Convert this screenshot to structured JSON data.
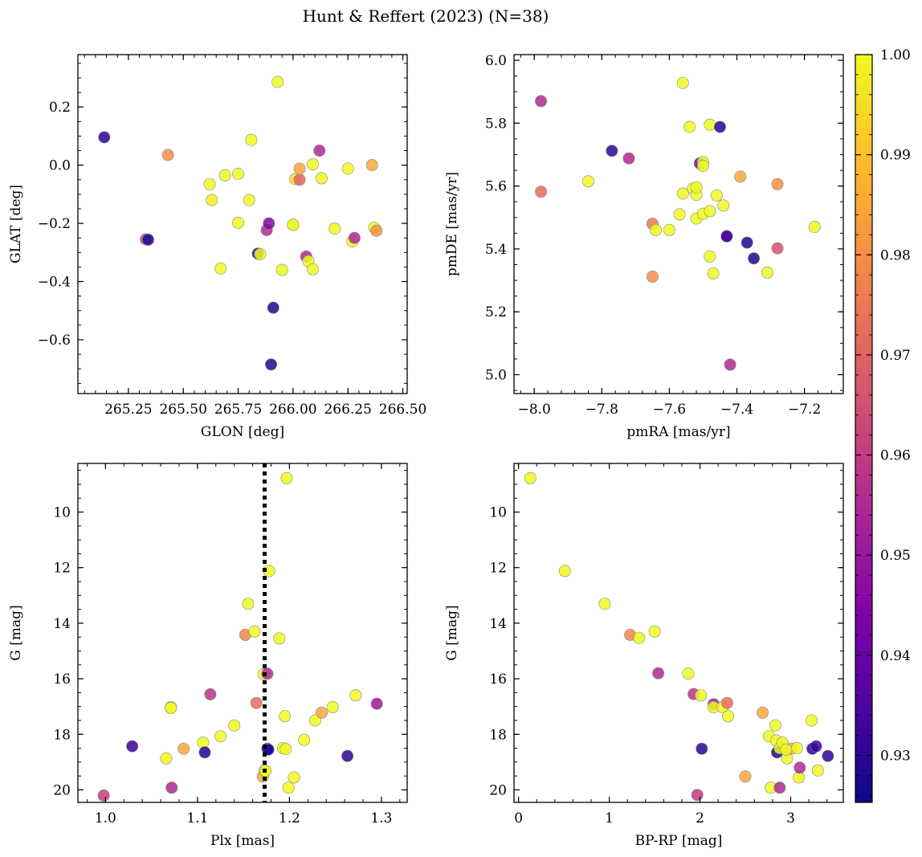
{
  "figure": {
    "title": "Hunt & Reffert (2023) (N=38)"
  },
  "colorbar": {
    "vmin": 0.9253,
    "vmax": 1.0,
    "colormap": "plasma",
    "ticks": [
      0.93,
      0.94,
      0.95,
      0.96,
      0.97,
      0.98,
      0.99,
      1.0
    ],
    "tick_labels": [
      "0.93",
      "0.94",
      "0.95",
      "0.96",
      "0.97",
      "0.98",
      "0.99",
      "1.00"
    ]
  },
  "chart_data": [
    {
      "id": "glon-glat",
      "type": "scatter",
      "xlabel": "GLON [deg]",
      "ylabel": "GLAT [deg]",
      "xlim": [
        265.02,
        266.52
      ],
      "ylim": [
        -0.785,
        0.38
      ],
      "yinvert": false,
      "xticks": [
        265.25,
        265.5,
        265.75,
        266.0,
        266.25,
        266.5
      ],
      "xtick_labels": [
        "265.25",
        "265.50",
        "265.75",
        "266.00",
        "266.25",
        "266.50"
      ],
      "yticks": [
        0.2,
        0.0,
        -0.2,
        -0.4,
        -0.6
      ],
      "ytick_labels": [
        "0.2",
        "0.0",
        "−0.2",
        "−0.4",
        "−0.6"
      ],
      "points": [
        {
          "x": 265.14,
          "y": 0.096,
          "c": 0.93
        },
        {
          "x": 265.43,
          "y": 0.035,
          "c": 0.98
        },
        {
          "x": 265.33,
          "y": -0.255,
          "c": 0.96
        },
        {
          "x": 265.34,
          "y": -0.256,
          "c": 0.928
        },
        {
          "x": 265.62,
          "y": -0.065,
          "c": 1.0
        },
        {
          "x": 265.63,
          "y": -0.12,
          "c": 0.998
        },
        {
          "x": 265.67,
          "y": -0.355,
          "c": 1.0
        },
        {
          "x": 265.69,
          "y": -0.035,
          "c": 1.0
        },
        {
          "x": 265.75,
          "y": -0.03,
          "c": 1.0
        },
        {
          "x": 265.75,
          "y": -0.198,
          "c": 1.0
        },
        {
          "x": 265.8,
          "y": -0.12,
          "c": 1.0
        },
        {
          "x": 265.81,
          "y": 0.087,
          "c": 1.0
        },
        {
          "x": 265.84,
          "y": -0.304,
          "c": 0.928
        },
        {
          "x": 265.85,
          "y": -0.306,
          "c": 1.0
        },
        {
          "x": 265.88,
          "y": -0.223,
          "c": 0.955
        },
        {
          "x": 265.89,
          "y": -0.2,
          "c": 0.945
        },
        {
          "x": 265.9,
          "y": -0.685,
          "c": 0.928
        },
        {
          "x": 265.91,
          "y": -0.49,
          "c": 0.928
        },
        {
          "x": 265.93,
          "y": 0.286,
          "c": 1.0
        },
        {
          "x": 265.95,
          "y": -0.36,
          "c": 1.0
        },
        {
          "x": 266.0,
          "y": -0.205,
          "c": 1.0
        },
        {
          "x": 266.01,
          "y": -0.048,
          "c": 0.995
        },
        {
          "x": 266.03,
          "y": -0.05,
          "c": 0.97
        },
        {
          "x": 266.03,
          "y": -0.012,
          "c": 0.985
        },
        {
          "x": 266.06,
          "y": -0.314,
          "c": 0.955
        },
        {
          "x": 266.07,
          "y": -0.33,
          "c": 1.0
        },
        {
          "x": 266.09,
          "y": 0.003,
          "c": 1.0
        },
        {
          "x": 266.09,
          "y": -0.358,
          "c": 1.0
        },
        {
          "x": 266.12,
          "y": 0.05,
          "c": 0.955
        },
        {
          "x": 266.13,
          "y": -0.045,
          "c": 1.0
        },
        {
          "x": 266.19,
          "y": -0.218,
          "c": 1.0
        },
        {
          "x": 266.25,
          "y": -0.012,
          "c": 1.0
        },
        {
          "x": 266.27,
          "y": -0.262,
          "c": 1.0
        },
        {
          "x": 266.28,
          "y": -0.25,
          "c": 0.955
        },
        {
          "x": 266.36,
          "y": 0.0,
          "c": 0.985
        },
        {
          "x": 266.37,
          "y": -0.215,
          "c": 1.0
        },
        {
          "x": 266.38,
          "y": -0.225,
          "c": 0.98
        },
        {
          "x": 266.0,
          "y": -0.205,
          "c": 1.0
        }
      ]
    },
    {
      "id": "pmra-pmde",
      "type": "scatter",
      "xlabel": "pmRA [mas/yr]",
      "ylabel": "pmDE [mas/yr]",
      "xlim": [
        -8.06,
        -7.085
      ],
      "ylim": [
        4.94,
        6.018
      ],
      "yinvert": false,
      "xticks": [
        -8.0,
        -7.8,
        -7.6,
        -7.4,
        -7.2
      ],
      "xtick_labels": [
        "−8.0",
        "−7.8",
        "−7.6",
        "−7.4",
        "−7.2"
      ],
      "yticks": [
        5.0,
        5.2,
        5.4,
        5.6,
        5.8,
        6.0
      ],
      "ytick_labels": [
        "5.0",
        "5.2",
        "5.4",
        "5.6",
        "5.8",
        "6.0"
      ],
      "points": [
        {
          "x": -7.98,
          "y": 5.87,
          "c": 0.955
        },
        {
          "x": -7.98,
          "y": 5.582,
          "c": 0.972
        },
        {
          "x": -7.84,
          "y": 5.615,
          "c": 1.0
        },
        {
          "x": -7.77,
          "y": 5.712,
          "c": 0.93
        },
        {
          "x": -7.72,
          "y": 5.688,
          "c": 0.955
        },
        {
          "x": -7.65,
          "y": 5.48,
          "c": 0.975
        },
        {
          "x": -7.65,
          "y": 5.312,
          "c": 0.98
        },
        {
          "x": -7.64,
          "y": 5.46,
          "c": 1.0
        },
        {
          "x": -7.6,
          "y": 5.46,
          "c": 1.0
        },
        {
          "x": -7.57,
          "y": 5.51,
          "c": 1.0
        },
        {
          "x": -7.56,
          "y": 5.928,
          "c": 1.0
        },
        {
          "x": -7.56,
          "y": 5.576,
          "c": 1.0
        },
        {
          "x": -7.54,
          "y": 5.788,
          "c": 1.0
        },
        {
          "x": -7.53,
          "y": 5.592,
          "c": 1.0
        },
        {
          "x": -7.52,
          "y": 5.572,
          "c": 1.0
        },
        {
          "x": -7.52,
          "y": 5.596,
          "c": 1.0
        },
        {
          "x": -7.52,
          "y": 5.497,
          "c": 1.0
        },
        {
          "x": -7.51,
          "y": 5.672,
          "c": 0.945
        },
        {
          "x": -7.5,
          "y": 5.676,
          "c": 1.0
        },
        {
          "x": -7.5,
          "y": 5.664,
          "c": 1.0
        },
        {
          "x": -7.5,
          "y": 5.512,
          "c": 1.0
        },
        {
          "x": -7.48,
          "y": 5.795,
          "c": 1.0
        },
        {
          "x": -7.48,
          "y": 5.52,
          "c": 1.0
        },
        {
          "x": -7.48,
          "y": 5.376,
          "c": 1.0
        },
        {
          "x": -7.47,
          "y": 5.322,
          "c": 1.0
        },
        {
          "x": -7.46,
          "y": 5.57,
          "c": 1.0
        },
        {
          "x": -7.45,
          "y": 5.788,
          "c": 0.928
        },
        {
          "x": -7.44,
          "y": 5.538,
          "c": 1.0
        },
        {
          "x": -7.43,
          "y": 5.441,
          "c": 0.935
        },
        {
          "x": -7.43,
          "y": 5.44,
          "c": 0.935
        },
        {
          "x": -7.42,
          "y": 5.032,
          "c": 0.955
        },
        {
          "x": -7.39,
          "y": 5.63,
          "c": 0.985
        },
        {
          "x": -7.37,
          "y": 5.42,
          "c": 0.928
        },
        {
          "x": -7.35,
          "y": 5.37,
          "c": 0.928
        },
        {
          "x": -7.31,
          "y": 5.325,
          "c": 1.0
        },
        {
          "x": -7.28,
          "y": 5.606,
          "c": 0.98
        },
        {
          "x": -7.28,
          "y": 5.402,
          "c": 0.965
        },
        {
          "x": -7.17,
          "y": 5.47,
          "c": 1.0
        }
      ]
    },
    {
      "id": "plx-g",
      "type": "scatter",
      "xlabel": "Plx [mas]",
      "ylabel": "G [mag]",
      "xlim": [
        0.97,
        1.328
      ],
      "ylim": [
        8.25,
        20.45
      ],
      "yinvert": true,
      "vline": 1.173,
      "xticks": [
        1.0,
        1.1,
        1.2,
        1.3
      ],
      "xtick_labels": [
        "1.0",
        "1.1",
        "1.2",
        "1.3"
      ],
      "yticks": [
        10,
        12,
        14,
        16,
        18,
        20
      ],
      "ytick_labels": [
        "10",
        "12",
        "14",
        "16",
        "18",
        "20"
      ],
      "points": [
        {
          "x": 0.998,
          "y": 20.2,
          "c": 0.96
        },
        {
          "x": 1.029,
          "y": 18.43,
          "c": 0.932
        },
        {
          "x": 1.066,
          "y": 18.87,
          "c": 1.0
        },
        {
          "x": 1.071,
          "y": 17.02,
          "c": 1.0
        },
        {
          "x": 1.071,
          "y": 17.05,
          "c": 1.0
        },
        {
          "x": 1.072,
          "y": 19.92,
          "c": 0.955
        },
        {
          "x": 1.085,
          "y": 18.52,
          "c": 0.985
        },
        {
          "x": 1.106,
          "y": 18.3,
          "c": 1.0
        },
        {
          "x": 1.108,
          "y": 18.65,
          "c": 0.928
        },
        {
          "x": 1.114,
          "y": 16.56,
          "c": 0.958
        },
        {
          "x": 1.125,
          "y": 18.07,
          "c": 1.0
        },
        {
          "x": 1.14,
          "y": 17.68,
          "c": 1.0
        },
        {
          "x": 1.152,
          "y": 14.42,
          "c": 0.978
        },
        {
          "x": 1.155,
          "y": 13.3,
          "c": 1.0
        },
        {
          "x": 1.162,
          "y": 14.3,
          "c": 1.0
        },
        {
          "x": 1.164,
          "y": 16.87,
          "c": 0.972
        },
        {
          "x": 1.171,
          "y": 19.52,
          "c": 0.985
        },
        {
          "x": 1.172,
          "y": 15.83,
          "c": 1.0
        },
        {
          "x": 1.173,
          "y": 19.3,
          "c": 1.0
        },
        {
          "x": 1.176,
          "y": 15.82,
          "c": 0.955
        },
        {
          "x": 1.176,
          "y": 18.52,
          "c": 0.928
        },
        {
          "x": 1.177,
          "y": 18.55,
          "c": 0.928
        },
        {
          "x": 1.178,
          "y": 12.12,
          "c": 1.0
        },
        {
          "x": 1.189,
          "y": 14.55,
          "c": 1.0
        },
        {
          "x": 1.193,
          "y": 18.5,
          "c": 1.0
        },
        {
          "x": 1.195,
          "y": 17.35,
          "c": 1.0
        },
        {
          "x": 1.196,
          "y": 18.53,
          "c": 1.0
        },
        {
          "x": 1.197,
          "y": 8.78,
          "c": 1.0
        },
        {
          "x": 1.199,
          "y": 19.92,
          "c": 1.0
        },
        {
          "x": 1.205,
          "y": 19.55,
          "c": 1.0
        },
        {
          "x": 1.216,
          "y": 18.2,
          "c": 1.0
        },
        {
          "x": 1.228,
          "y": 17.5,
          "c": 1.0
        },
        {
          "x": 1.235,
          "y": 17.22,
          "c": 0.985
        },
        {
          "x": 1.247,
          "y": 17.02,
          "c": 1.0
        },
        {
          "x": 1.263,
          "y": 18.78,
          "c": 0.93
        },
        {
          "x": 1.272,
          "y": 16.6,
          "c": 1.0
        },
        {
          "x": 1.295,
          "y": 16.9,
          "c": 0.95
        },
        {
          "x": 1.174,
          "y": 19.32,
          "c": 1.0
        }
      ]
    },
    {
      "id": "bprp-g",
      "type": "scatter",
      "xlabel": "BP-RP [mag]",
      "ylabel": "G [mag]",
      "xlim": [
        -0.05,
        3.58
      ],
      "ylim": [
        8.25,
        20.45
      ],
      "yinvert": true,
      "xticks": [
        0,
        1,
        2,
        3
      ],
      "xtick_labels": [
        "0",
        "1",
        "2",
        "3"
      ],
      "yticks": [
        10,
        12,
        14,
        16,
        18,
        20
      ],
      "ytick_labels": [
        "10",
        "12",
        "14",
        "16",
        "18",
        "20"
      ],
      "points": [
        {
          "x": 0.13,
          "y": 8.78,
          "c": 1.0
        },
        {
          "x": 0.51,
          "y": 12.12,
          "c": 1.0
        },
        {
          "x": 0.95,
          "y": 13.3,
          "c": 1.0
        },
        {
          "x": 1.23,
          "y": 14.42,
          "c": 0.978
        },
        {
          "x": 1.33,
          "y": 14.53,
          "c": 1.0
        },
        {
          "x": 1.5,
          "y": 14.3,
          "c": 1.0
        },
        {
          "x": 1.54,
          "y": 15.8,
          "c": 0.955
        },
        {
          "x": 1.87,
          "y": 15.82,
          "c": 1.0
        },
        {
          "x": 1.93,
          "y": 16.55,
          "c": 0.958
        },
        {
          "x": 1.97,
          "y": 20.18,
          "c": 0.96
        },
        {
          "x": 2.01,
          "y": 16.6,
          "c": 1.0
        },
        {
          "x": 2.02,
          "y": 18.52,
          "c": 0.93
        },
        {
          "x": 2.15,
          "y": 16.92,
          "c": 0.95
        },
        {
          "x": 2.15,
          "y": 17.02,
          "c": 1.0
        },
        {
          "x": 2.25,
          "y": 17.02,
          "c": 1.0
        },
        {
          "x": 2.3,
          "y": 16.87,
          "c": 0.972
        },
        {
          "x": 2.31,
          "y": 17.35,
          "c": 1.0
        },
        {
          "x": 2.5,
          "y": 19.52,
          "c": 0.985
        },
        {
          "x": 2.69,
          "y": 17.22,
          "c": 0.985
        },
        {
          "x": 2.76,
          "y": 18.07,
          "c": 1.0
        },
        {
          "x": 2.78,
          "y": 19.92,
          "c": 1.0
        },
        {
          "x": 2.83,
          "y": 17.68,
          "c": 1.0
        },
        {
          "x": 2.84,
          "y": 18.22,
          "c": 1.0
        },
        {
          "x": 2.85,
          "y": 18.65,
          "c": 0.928
        },
        {
          "x": 2.88,
          "y": 19.92,
          "c": 0.955
        },
        {
          "x": 2.88,
          "y": 18.5,
          "c": 1.0
        },
        {
          "x": 2.91,
          "y": 18.3,
          "c": 1.0
        },
        {
          "x": 2.96,
          "y": 18.87,
          "c": 1.0
        },
        {
          "x": 3.01,
          "y": 18.52,
          "c": 0.985
        },
        {
          "x": 3.07,
          "y": 18.5,
          "c": 1.0
        },
        {
          "x": 3.09,
          "y": 19.55,
          "c": 1.0
        },
        {
          "x": 3.1,
          "y": 19.2,
          "c": 0.955
        },
        {
          "x": 3.23,
          "y": 17.5,
          "c": 1.0
        },
        {
          "x": 3.24,
          "y": 18.52,
          "c": 0.928
        },
        {
          "x": 3.28,
          "y": 18.43,
          "c": 0.932
        },
        {
          "x": 3.3,
          "y": 19.3,
          "c": 1.0
        },
        {
          "x": 3.41,
          "y": 18.78,
          "c": 0.93
        },
        {
          "x": 2.95,
          "y": 18.55,
          "c": 1.0
        }
      ]
    }
  ]
}
